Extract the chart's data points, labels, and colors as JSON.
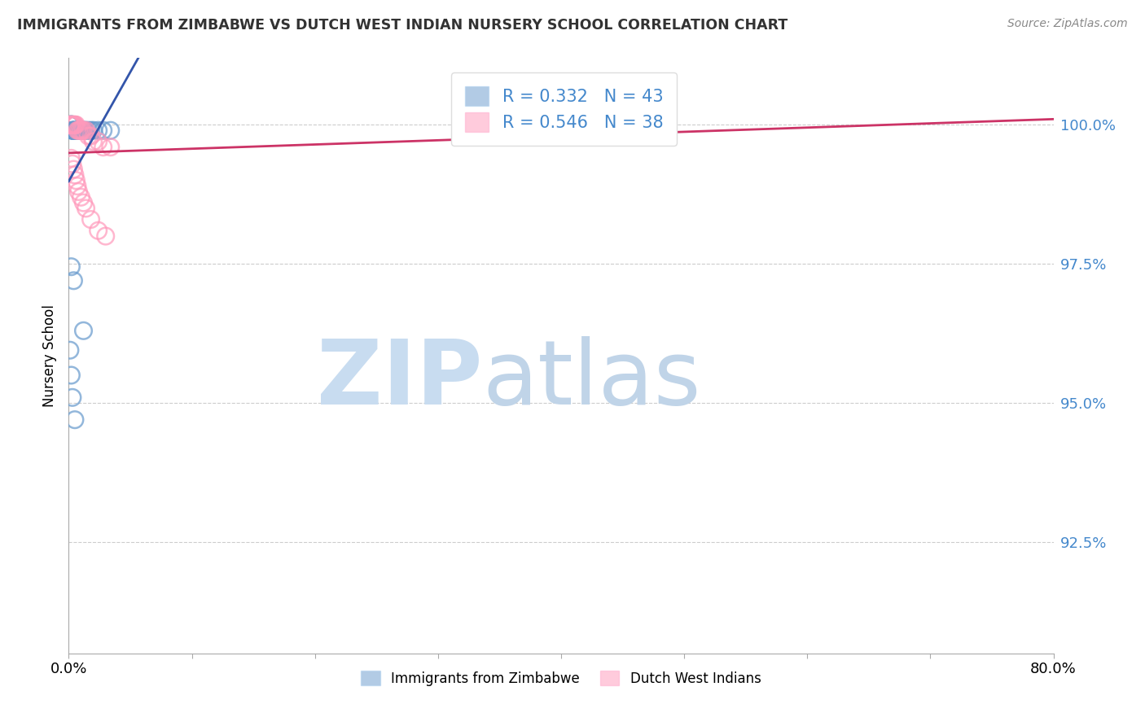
{
  "title": "IMMIGRANTS FROM ZIMBABWE VS DUTCH WEST INDIAN NURSERY SCHOOL CORRELATION CHART",
  "source": "Source: ZipAtlas.com",
  "ylabel": "Nursery School",
  "ytick_labels": [
    "100.0%",
    "97.5%",
    "95.0%",
    "92.5%"
  ],
  "ytick_values": [
    1.0,
    0.975,
    0.95,
    0.925
  ],
  "xlim": [
    0.0,
    0.8
  ],
  "ylim": [
    0.905,
    1.012
  ],
  "legend_r1": "R = 0.332   N = 43",
  "legend_r2": "R = 0.546   N = 38",
  "color_blue": "#6699CC",
  "color_pink": "#FF99BB",
  "color_trendline_blue": "#3355AA",
  "color_trendline_pink": "#CC3366",
  "legend_label1": "Immigrants from Zimbabwe",
  "legend_label2": "Dutch West Indians",
  "blue_x": [
    0.001,
    0.001,
    0.001,
    0.002,
    0.002,
    0.002,
    0.002,
    0.003,
    0.003,
    0.003,
    0.003,
    0.003,
    0.004,
    0.004,
    0.004,
    0.005,
    0.005,
    0.006,
    0.006,
    0.007,
    0.007,
    0.008,
    0.008,
    0.009,
    0.009,
    0.01,
    0.011,
    0.012,
    0.013,
    0.014,
    0.016,
    0.018,
    0.02,
    0.024,
    0.028,
    0.034,
    0.002,
    0.004,
    0.012,
    0.001,
    0.002,
    0.003,
    0.005
  ],
  "blue_y": [
    1.0,
    1.0,
    1.0,
    1.0,
    1.0,
    1.0,
    1.0,
    1.0,
    1.0,
    1.0,
    0.999,
    0.999,
    0.999,
    0.999,
    0.999,
    0.999,
    0.999,
    0.999,
    0.999,
    0.999,
    0.999,
    0.999,
    0.999,
    0.999,
    0.999,
    0.999,
    0.999,
    0.999,
    0.999,
    0.999,
    0.999,
    0.999,
    0.999,
    0.999,
    0.999,
    0.999,
    0.9745,
    0.972,
    0.963,
    0.9595,
    0.955,
    0.951,
    0.947
  ],
  "pink_x": [
    0.001,
    0.001,
    0.002,
    0.002,
    0.003,
    0.003,
    0.004,
    0.004,
    0.005,
    0.005,
    0.006,
    0.007,
    0.008,
    0.009,
    0.01,
    0.011,
    0.012,
    0.014,
    0.016,
    0.018,
    0.02,
    0.024,
    0.028,
    0.034,
    0.002,
    0.003,
    0.004,
    0.005,
    0.006,
    0.007,
    0.008,
    0.01,
    0.012,
    0.014,
    0.018,
    0.024,
    0.03,
    0.39
  ],
  "pink_y": [
    1.0,
    1.0,
    1.0,
    1.0,
    1.0,
    1.0,
    1.0,
    1.0,
    1.0,
    1.0,
    1.0,
    0.999,
    0.999,
    0.999,
    0.999,
    0.999,
    0.999,
    0.999,
    0.998,
    0.998,
    0.997,
    0.997,
    0.996,
    0.996,
    0.994,
    0.993,
    0.992,
    0.991,
    0.99,
    0.989,
    0.988,
    0.987,
    0.986,
    0.985,
    0.983,
    0.981,
    0.98,
    1.0
  ]
}
